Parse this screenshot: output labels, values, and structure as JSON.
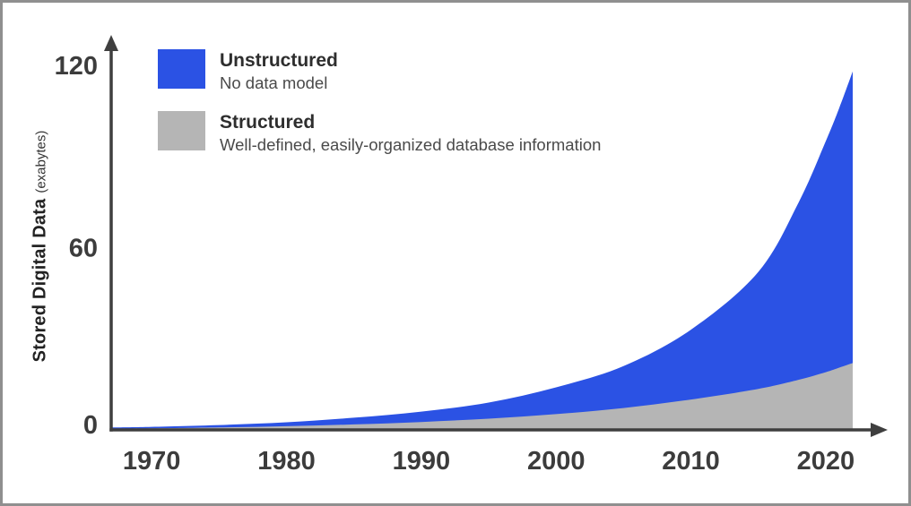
{
  "chart_data": {
    "type": "area",
    "stacked": true,
    "title": "",
    "xlabel": "",
    "ylabel_main": "Stored Digital Data",
    "ylabel_unit": "(exabytes)",
    "x": [
      1967,
      1970,
      1975,
      1980,
      1985,
      1990,
      1995,
      2000,
      2005,
      2010,
      2015,
      2018,
      2020,
      2021,
      2022
    ],
    "series": [
      {
        "name": "Structured",
        "color": "#b5b5b5",
        "values": [
          0.4,
          0.5,
          0.8,
          1.2,
          1.8,
          2.6,
          3.7,
          5.2,
          7.2,
          10,
          13.5,
          16.5,
          19,
          20.5,
          22
        ]
      },
      {
        "name": "Unstructured",
        "color": "#2b52e4",
        "values": [
          0.4,
          0.5,
          0.8,
          1.3,
          2.2,
          3.4,
          5.3,
          8.8,
          13.8,
          23,
          38.5,
          58.5,
          76,
          85.5,
          96
        ]
      }
    ],
    "x_ticks": [
      1970,
      1980,
      1990,
      2000,
      2010,
      2020
    ],
    "y_ticks": [
      0,
      60,
      120
    ],
    "xlim": [
      1967,
      2022
    ],
    "ylim": [
      0,
      120
    ],
    "grid": false,
    "legend_position": "top-left",
    "legend": [
      {
        "title": "Unstructured",
        "subtitle": "No data model",
        "color": "#2b52e4"
      },
      {
        "title": "Structured",
        "subtitle": "Well-defined, easily-organized database information",
        "color": "#b5b5b5"
      }
    ]
  },
  "colors": {
    "unstructured": "#2b52e4",
    "structured": "#b5b5b5",
    "axis": "#3f3f3f",
    "tick_text": "#3c3c3c",
    "legend_title": "#2e2e2e",
    "legend_subtitle": "#4a4a4a",
    "frame_border": "#8f8f8f",
    "background": "#ffffff"
  }
}
